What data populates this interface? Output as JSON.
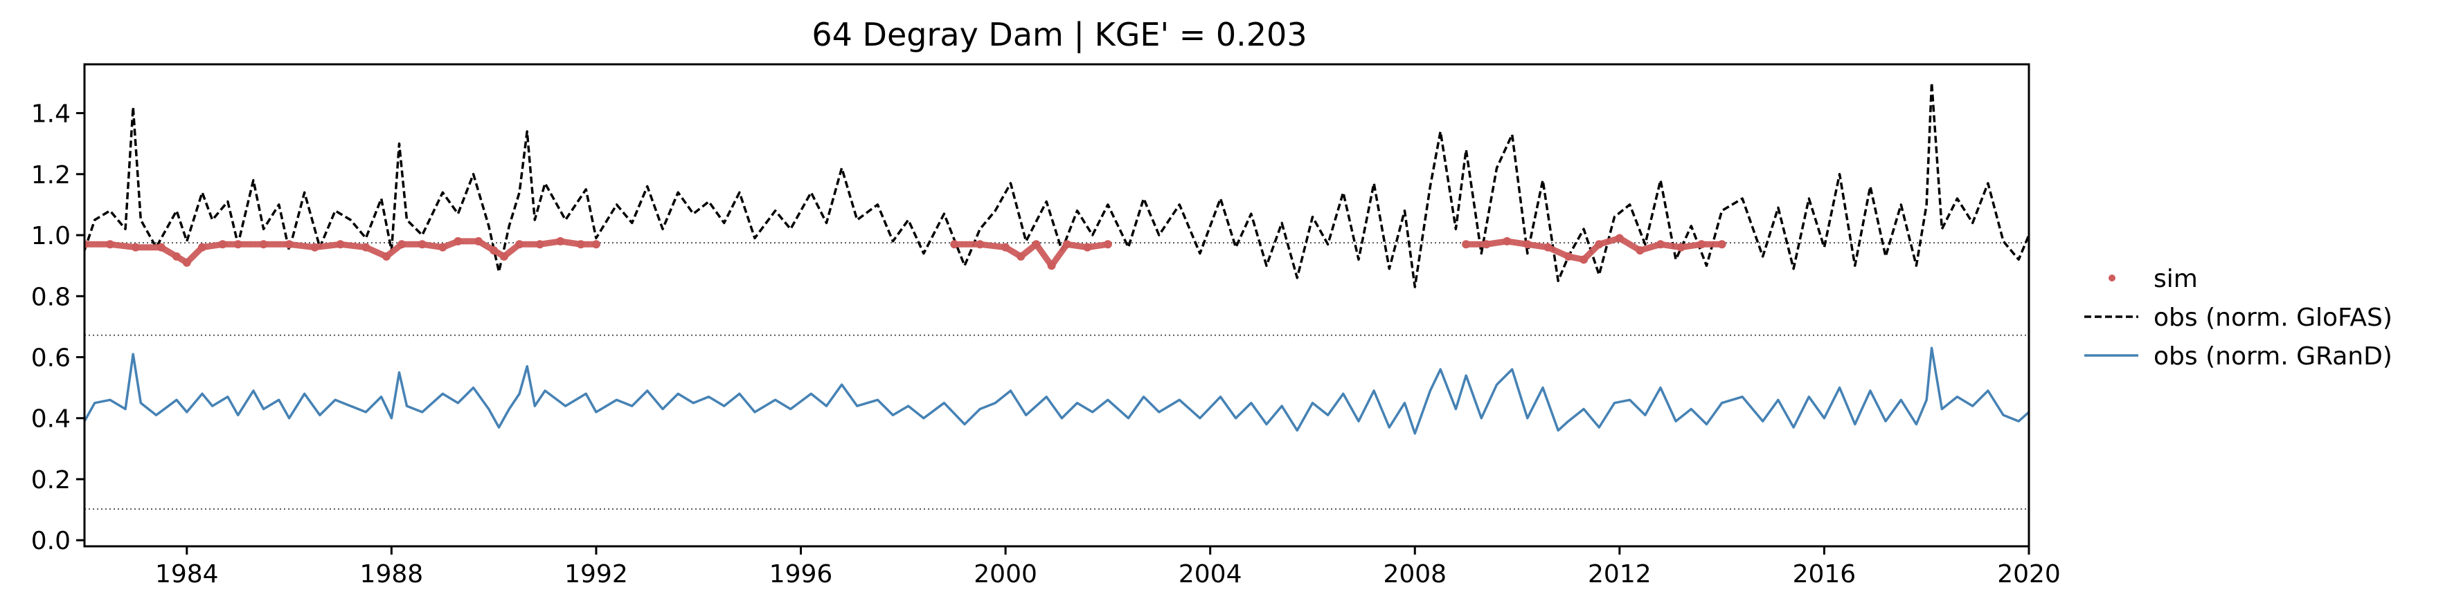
{
  "chart_data": {
    "type": "line",
    "title": "64  Degray Dam | KGE' = 0.203",
    "xlabel": "",
    "ylabel": "",
    "xlim": [
      1982.0,
      2020.0
    ],
    "ylim": [
      -0.02,
      1.56
    ],
    "x_ticks": [
      "1984",
      "1988",
      "1992",
      "1996",
      "2000",
      "2004",
      "2008",
      "2012",
      "2016",
      "2020"
    ],
    "y_ticks": [
      "0.0",
      "0.2",
      "0.4",
      "0.6",
      "0.8",
      "1.0",
      "1.2",
      "1.4"
    ],
    "reference_lines": [
      0.975,
      0.672,
      0.102
    ],
    "grid": false,
    "legend_position": "outside-right",
    "series": [
      {
        "name": "sim",
        "style": "scatter",
        "color": "#cd5c5c",
        "segments": [
          {
            "x": [
              1982.0,
              1982.5,
              1983.0,
              1983.5,
              1983.8,
              1984.0,
              1984.3,
              1984.7,
              1985.0,
              1985.5,
              1986.0,
              1986.5,
              1987.0,
              1987.5,
              1987.9,
              1988.2,
              1988.6,
              1989.0,
              1989.3,
              1989.7,
              1990.0,
              1990.2,
              1990.5,
              1990.9,
              1991.3,
              1991.7,
              1992.0
            ],
            "y": [
              0.97,
              0.97,
              0.96,
              0.96,
              0.93,
              0.91,
              0.96,
              0.97,
              0.97,
              0.97,
              0.97,
              0.96,
              0.97,
              0.96,
              0.93,
              0.97,
              0.97,
              0.96,
              0.98,
              0.98,
              0.95,
              0.93,
              0.97,
              0.97,
              0.98,
              0.97,
              0.97
            ]
          },
          {
            "x": [
              1999.0,
              1999.5,
              2000.0,
              2000.3,
              2000.6,
              2000.9,
              2001.2,
              2001.6,
              2002.0
            ],
            "y": [
              0.97,
              0.97,
              0.96,
              0.93,
              0.97,
              0.9,
              0.97,
              0.96,
              0.97
            ]
          },
          {
            "x": [
              2009.0,
              2009.4,
              2009.8,
              2010.2,
              2010.6,
              2011.0,
              2011.3,
              2011.6,
              2012.0,
              2012.4,
              2012.8,
              2013.2,
              2013.6,
              2014.0
            ],
            "y": [
              0.97,
              0.97,
              0.98,
              0.97,
              0.96,
              0.93,
              0.92,
              0.97,
              0.99,
              0.95,
              0.97,
              0.96,
              0.97,
              0.97
            ]
          }
        ]
      },
      {
        "name": "obs (norm. GloFAS)",
        "style": "dashed",
        "color": "#000000",
        "x": [
          1982.0,
          1982.2,
          1982.5,
          1982.8,
          1982.95,
          1983.1,
          1983.4,
          1983.8,
          1984.0,
          1984.3,
          1984.5,
          1984.8,
          1985.0,
          1985.3,
          1985.5,
          1985.8,
          1986.0,
          1986.3,
          1986.6,
          1986.9,
          1987.2,
          1987.5,
          1987.8,
          1988.0,
          1988.15,
          1988.3,
          1988.6,
          1989.0,
          1989.3,
          1989.6,
          1989.9,
          1990.1,
          1990.3,
          1990.5,
          1990.65,
          1990.8,
          1991.0,
          1991.4,
          1991.8,
          1992.0,
          1992.4,
          1992.7,
          1993.0,
          1993.3,
          1993.6,
          1993.9,
          1994.2,
          1994.5,
          1994.8,
          1995.1,
          1995.5,
          1995.8,
          1996.2,
          1996.5,
          1996.8,
          1997.1,
          1997.5,
          1997.8,
          1998.1,
          1998.4,
          1998.8,
          1999.2,
          1999.5,
          1999.8,
          2000.1,
          2000.4,
          2000.8,
          2001.1,
          2001.4,
          2001.7,
          2002.0,
          2002.4,
          2002.7,
          2003.0,
          2003.4,
          2003.8,
          2004.2,
          2004.5,
          2004.8,
          2005.1,
          2005.4,
          2005.7,
          2006.0,
          2006.3,
          2006.6,
          2006.9,
          2007.2,
          2007.5,
          2007.8,
          2008.0,
          2008.3,
          2008.5,
          2008.8,
          2009.0,
          2009.3,
          2009.6,
          2009.9,
          2010.2,
          2010.5,
          2010.8,
          2011.0,
          2011.3,
          2011.6,
          2011.9,
          2012.2,
          2012.5,
          2012.8,
          2013.1,
          2013.4,
          2013.7,
          2014.0,
          2014.4,
          2014.8,
          2015.1,
          2015.4,
          2015.7,
          2016.0,
          2016.3,
          2016.6,
          2016.9,
          2017.2,
          2017.5,
          2017.8,
          2018.0,
          2018.1,
          2018.3,
          2018.6,
          2018.9,
          2019.2,
          2019.5,
          2019.8,
          2020.0
        ],
        "y": [
          0.95,
          1.05,
          1.08,
          1.02,
          1.42,
          1.05,
          0.96,
          1.08,
          0.98,
          1.14,
          1.05,
          1.11,
          0.97,
          1.18,
          1.02,
          1.1,
          0.95,
          1.14,
          0.96,
          1.08,
          1.05,
          0.99,
          1.12,
          0.95,
          1.3,
          1.05,
          1.0,
          1.14,
          1.07,
          1.2,
          1.03,
          0.88,
          1.03,
          1.14,
          1.34,
          1.05,
          1.17,
          1.05,
          1.15,
          0.99,
          1.1,
          1.04,
          1.16,
          1.02,
          1.14,
          1.07,
          1.11,
          1.04,
          1.14,
          0.99,
          1.08,
          1.02,
          1.14,
          1.04,
          1.22,
          1.05,
          1.1,
          0.98,
          1.05,
          0.94,
          1.07,
          0.9,
          1.02,
          1.08,
          1.17,
          0.98,
          1.11,
          0.95,
          1.08,
          1.0,
          1.1,
          0.96,
          1.12,
          1.0,
          1.1,
          0.94,
          1.12,
          0.96,
          1.07,
          0.9,
          1.04,
          0.86,
          1.06,
          0.97,
          1.14,
          0.92,
          1.17,
          0.89,
          1.08,
          0.83,
          1.16,
          1.34,
          1.02,
          1.28,
          0.94,
          1.22,
          1.33,
          0.94,
          1.18,
          0.85,
          0.93,
          1.02,
          0.87,
          1.06,
          1.1,
          0.97,
          1.18,
          0.92,
          1.03,
          0.9,
          1.08,
          1.12,
          0.93,
          1.09,
          0.89,
          1.12,
          0.96,
          1.2,
          0.9,
          1.16,
          0.93,
          1.1,
          0.9,
          1.1,
          1.5,
          1.02,
          1.12,
          1.04,
          1.17,
          0.98,
          0.92,
          1.0
        ]
      },
      {
        "name": "obs (norm. GRanD)",
        "style": "solid",
        "color": "#4682b4",
        "x": [
          1982.0,
          1982.2,
          1982.5,
          1982.8,
          1982.95,
          1983.1,
          1983.4,
          1983.8,
          1984.0,
          1984.3,
          1984.5,
          1984.8,
          1985.0,
          1985.3,
          1985.5,
          1985.8,
          1986.0,
          1986.3,
          1986.6,
          1986.9,
          1987.2,
          1987.5,
          1987.8,
          1988.0,
          1988.15,
          1988.3,
          1988.6,
          1989.0,
          1989.3,
          1989.6,
          1989.9,
          1990.1,
          1990.3,
          1990.5,
          1990.65,
          1990.8,
          1991.0,
          1991.4,
          1991.8,
          1992.0,
          1992.4,
          1992.7,
          1993.0,
          1993.3,
          1993.6,
          1993.9,
          1994.2,
          1994.5,
          1994.8,
          1995.1,
          1995.5,
          1995.8,
          1996.2,
          1996.5,
          1996.8,
          1997.1,
          1997.5,
          1997.8,
          1998.1,
          1998.4,
          1998.8,
          1999.2,
          1999.5,
          1999.8,
          2000.1,
          2000.4,
          2000.8,
          2001.1,
          2001.4,
          2001.7,
          2002.0,
          2002.4,
          2002.7,
          2003.0,
          2003.4,
          2003.8,
          2004.2,
          2004.5,
          2004.8,
          2005.1,
          2005.4,
          2005.7,
          2006.0,
          2006.3,
          2006.6,
          2006.9,
          2007.2,
          2007.5,
          2007.8,
          2008.0,
          2008.3,
          2008.5,
          2008.8,
          2009.0,
          2009.3,
          2009.6,
          2009.9,
          2010.2,
          2010.5,
          2010.8,
          2011.0,
          2011.3,
          2011.6,
          2011.9,
          2012.2,
          2012.5,
          2012.8,
          2013.1,
          2013.4,
          2013.7,
          2014.0,
          2014.4,
          2014.8,
          2015.1,
          2015.4,
          2015.7,
          2016.0,
          2016.3,
          2016.6,
          2016.9,
          2017.2,
          2017.5,
          2017.8,
          2018.0,
          2018.1,
          2018.3,
          2018.6,
          2018.9,
          2019.2,
          2019.5,
          2019.8,
          2020.0
        ],
        "y": [
          0.39,
          0.45,
          0.46,
          0.43,
          0.61,
          0.45,
          0.41,
          0.46,
          0.42,
          0.48,
          0.44,
          0.47,
          0.41,
          0.49,
          0.43,
          0.46,
          0.4,
          0.48,
          0.41,
          0.46,
          0.44,
          0.42,
          0.47,
          0.4,
          0.55,
          0.44,
          0.42,
          0.48,
          0.45,
          0.5,
          0.43,
          0.37,
          0.43,
          0.48,
          0.57,
          0.44,
          0.49,
          0.44,
          0.48,
          0.42,
          0.46,
          0.44,
          0.49,
          0.43,
          0.48,
          0.45,
          0.47,
          0.44,
          0.48,
          0.42,
          0.46,
          0.43,
          0.48,
          0.44,
          0.51,
          0.44,
          0.46,
          0.41,
          0.44,
          0.4,
          0.45,
          0.38,
          0.43,
          0.45,
          0.49,
          0.41,
          0.47,
          0.4,
          0.45,
          0.42,
          0.46,
          0.4,
          0.47,
          0.42,
          0.46,
          0.4,
          0.47,
          0.4,
          0.45,
          0.38,
          0.44,
          0.36,
          0.45,
          0.41,
          0.48,
          0.39,
          0.49,
          0.37,
          0.45,
          0.35,
          0.49,
          0.56,
          0.43,
          0.54,
          0.4,
          0.51,
          0.56,
          0.4,
          0.5,
          0.36,
          0.39,
          0.43,
          0.37,
          0.45,
          0.46,
          0.41,
          0.5,
          0.39,
          0.43,
          0.38,
          0.45,
          0.47,
          0.39,
          0.46,
          0.37,
          0.47,
          0.4,
          0.5,
          0.38,
          0.49,
          0.39,
          0.46,
          0.38,
          0.46,
          0.63,
          0.43,
          0.47,
          0.44,
          0.49,
          0.41,
          0.39,
          0.42
        ]
      }
    ]
  }
}
